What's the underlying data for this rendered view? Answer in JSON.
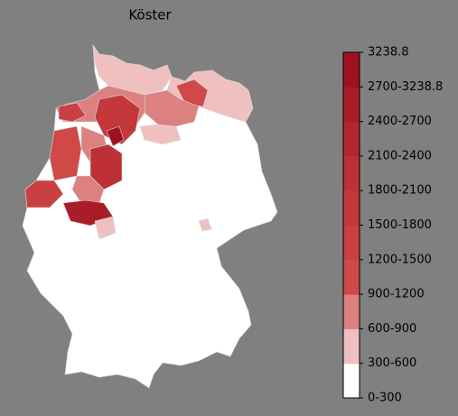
{
  "title": "Köster",
  "legend": {
    "labels": [
      "0-300",
      "300-600",
      "600-900",
      "900-1200",
      "1200-1500",
      "1500-1800",
      "1800-2100",
      "2100-2400",
      "2400-2700",
      "2700-3238.8",
      "3238.8"
    ],
    "colors": [
      "#ffffff",
      "#f0c0c0",
      "#dc8080",
      "#d04848",
      "#ca4042",
      "#c4383c",
      "#bd3036",
      "#b4262f",
      "#aa1d28",
      "#9e1220"
    ]
  }
}
